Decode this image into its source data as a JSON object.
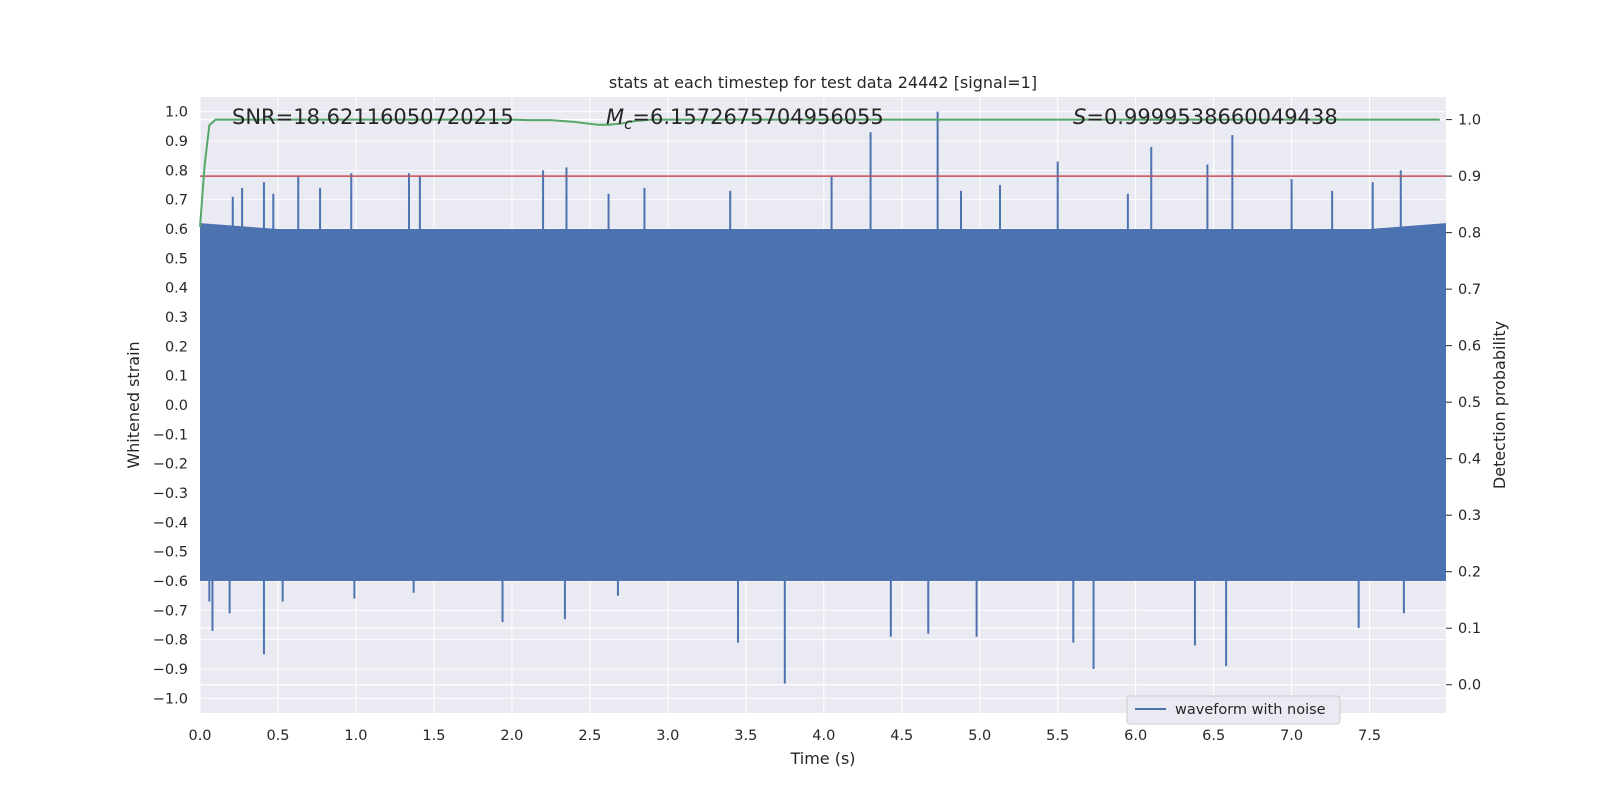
{
  "chart_data": {
    "type": "line",
    "title": "stats at each timestep for test data 24442 [signal=1]",
    "xlabel": "Time (s)",
    "ylabel": "Whitened strain",
    "y2label": "Detection probability",
    "xlim": [
      0.0,
      7.99
    ],
    "ylim": [
      -1.05,
      1.05
    ],
    "y2lim": [
      -0.05,
      1.04
    ],
    "x_ticks": [
      0.0,
      0.5,
      1.0,
      1.5,
      2.0,
      2.5,
      3.0,
      3.5,
      4.0,
      4.5,
      5.0,
      5.5,
      6.0,
      6.5,
      7.0,
      7.5
    ],
    "x_tick_labels": [
      "0.0",
      "0.5",
      "1.0",
      "1.5",
      "2.0",
      "2.5",
      "3.0",
      "3.5",
      "4.0",
      "4.5",
      "5.0",
      "5.5",
      "6.0",
      "6.5",
      "7.0",
      "7.5"
    ],
    "y_ticks": [
      1.0,
      0.9,
      0.8,
      0.7,
      0.6,
      0.5,
      0.4,
      0.3,
      0.2,
      0.1,
      0.0,
      -0.1,
      -0.2,
      -0.3,
      -0.4,
      -0.5,
      -0.6,
      -0.7,
      -0.8,
      -0.9,
      -1.0
    ],
    "y_tick_labels": [
      "1.0",
      "0.9",
      "0.8",
      "0.7",
      "0.6",
      "0.5",
      "0.4",
      "0.3",
      "0.2",
      "0.1",
      "0.0",
      "−0.1",
      "−0.2",
      "−0.3",
      "−0.4",
      "−0.5",
      "−0.6",
      "−0.7",
      "−0.8",
      "−0.9",
      "−1.0"
    ],
    "y2_ticks": [
      1.0,
      0.9,
      0.8,
      0.7,
      0.6,
      0.5,
      0.4,
      0.3,
      0.2,
      0.1,
      0.0
    ],
    "y2_tick_labels": [
      "1.0",
      "0.9",
      "0.8",
      "0.7",
      "0.6",
      "0.5",
      "0.4",
      "0.3",
      "0.2",
      "0.1",
      "0.0"
    ],
    "grid": true,
    "legend": {
      "placement": "lower-right",
      "entries": [
        "waveform with noise"
      ]
    },
    "annotations": {
      "snr": "SNR=18.62116050720215",
      "mc_symbol": "M",
      "mc_sub": "c",
      "mc_value": "=6.1572675704956055",
      "s_symbol": "S",
      "s_value": "=0.9999538660049438"
    },
    "threshold": {
      "axis": "y2",
      "value": 0.9,
      "color": "#c44e52"
    },
    "series": [
      {
        "name": "waveform with noise",
        "axis": "y",
        "color": "#4c72b0",
        "envelope": {
          "x": [
            0.0,
            0.5,
            1.0,
            1.5,
            2.0,
            2.5,
            3.0,
            3.5,
            4.0,
            4.5,
            5.0,
            5.5,
            6.0,
            6.5,
            7.0,
            7.5,
            7.99
          ],
          "upper": [
            0.62,
            0.6,
            0.6,
            0.6,
            0.6,
            0.6,
            0.6,
            0.6,
            0.6,
            0.6,
            0.6,
            0.6,
            0.6,
            0.6,
            0.6,
            0.6,
            0.62
          ],
          "lower": [
            -0.6,
            -0.6,
            -0.6,
            -0.6,
            -0.6,
            -0.6,
            -0.6,
            -0.6,
            -0.6,
            -0.6,
            -0.6,
            -0.6,
            -0.6,
            -0.6,
            -0.6,
            -0.6,
            -0.6
          ]
        },
        "peaks_positive": [
          {
            "x": 0.21,
            "y": 0.71
          },
          {
            "x": 0.27,
            "y": 0.74
          },
          {
            "x": 0.41,
            "y": 0.76
          },
          {
            "x": 0.47,
            "y": 0.72
          },
          {
            "x": 0.63,
            "y": 0.78
          },
          {
            "x": 0.77,
            "y": 0.74
          },
          {
            "x": 0.97,
            "y": 0.79
          },
          {
            "x": 1.34,
            "y": 0.79
          },
          {
            "x": 1.41,
            "y": 0.78
          },
          {
            "x": 2.2,
            "y": 0.8
          },
          {
            "x": 2.35,
            "y": 0.81
          },
          {
            "x": 2.62,
            "y": 0.72
          },
          {
            "x": 2.85,
            "y": 0.74
          },
          {
            "x": 3.4,
            "y": 0.73
          },
          {
            "x": 4.05,
            "y": 0.78
          },
          {
            "x": 4.3,
            "y": 0.93
          },
          {
            "x": 4.73,
            "y": 1.0
          },
          {
            "x": 4.88,
            "y": 0.73
          },
          {
            "x": 5.13,
            "y": 0.75
          },
          {
            "x": 5.5,
            "y": 0.83
          },
          {
            "x": 5.95,
            "y": 0.72
          },
          {
            "x": 6.1,
            "y": 0.88
          },
          {
            "x": 6.46,
            "y": 0.82
          },
          {
            "x": 6.62,
            "y": 0.92
          },
          {
            "x": 7.0,
            "y": 0.77
          },
          {
            "x": 7.26,
            "y": 0.73
          },
          {
            "x": 7.52,
            "y": 0.76
          },
          {
            "x": 7.7,
            "y": 0.8
          }
        ],
        "peaks_negative": [
          {
            "x": 0.06,
            "y": -0.67
          },
          {
            "x": 0.08,
            "y": -0.77
          },
          {
            "x": 0.19,
            "y": -0.71
          },
          {
            "x": 0.41,
            "y": -0.85
          },
          {
            "x": 0.53,
            "y": -0.67
          },
          {
            "x": 0.99,
            "y": -0.66
          },
          {
            "x": 1.37,
            "y": -0.64
          },
          {
            "x": 1.94,
            "y": -0.74
          },
          {
            "x": 2.34,
            "y": -0.73
          },
          {
            "x": 2.68,
            "y": -0.65
          },
          {
            "x": 3.45,
            "y": -0.81
          },
          {
            "x": 3.75,
            "y": -0.95
          },
          {
            "x": 4.43,
            "y": -0.79
          },
          {
            "x": 4.67,
            "y": -0.78
          },
          {
            "x": 4.98,
            "y": -0.79
          },
          {
            "x": 5.6,
            "y": -0.81
          },
          {
            "x": 5.73,
            "y": -0.9
          },
          {
            "x": 6.38,
            "y": -0.82
          },
          {
            "x": 6.58,
            "y": -0.89
          },
          {
            "x": 7.43,
            "y": -0.76
          },
          {
            "x": 7.72,
            "y": -0.71
          }
        ]
      },
      {
        "name": "",
        "axis": "y2",
        "color": "#55a868",
        "x": [
          0.0,
          0.03,
          0.06,
          0.1,
          0.15,
          0.3,
          0.6,
          1.0,
          1.5,
          2.0,
          2.1,
          2.25,
          2.4,
          2.55,
          2.62,
          2.7,
          2.8,
          2.9,
          3.0,
          4.0,
          5.0,
          6.0,
          7.0,
          7.95
        ],
        "y": [
          0.81,
          0.92,
          0.99,
          1.0,
          1.0,
          1.0,
          1.0,
          1.0,
          1.0,
          1.0,
          0.999,
          0.999,
          0.996,
          0.991,
          0.991,
          0.993,
          0.998,
          1.0,
          1.0,
          1.0,
          1.0,
          1.0,
          1.0,
          1.0
        ]
      }
    ]
  }
}
